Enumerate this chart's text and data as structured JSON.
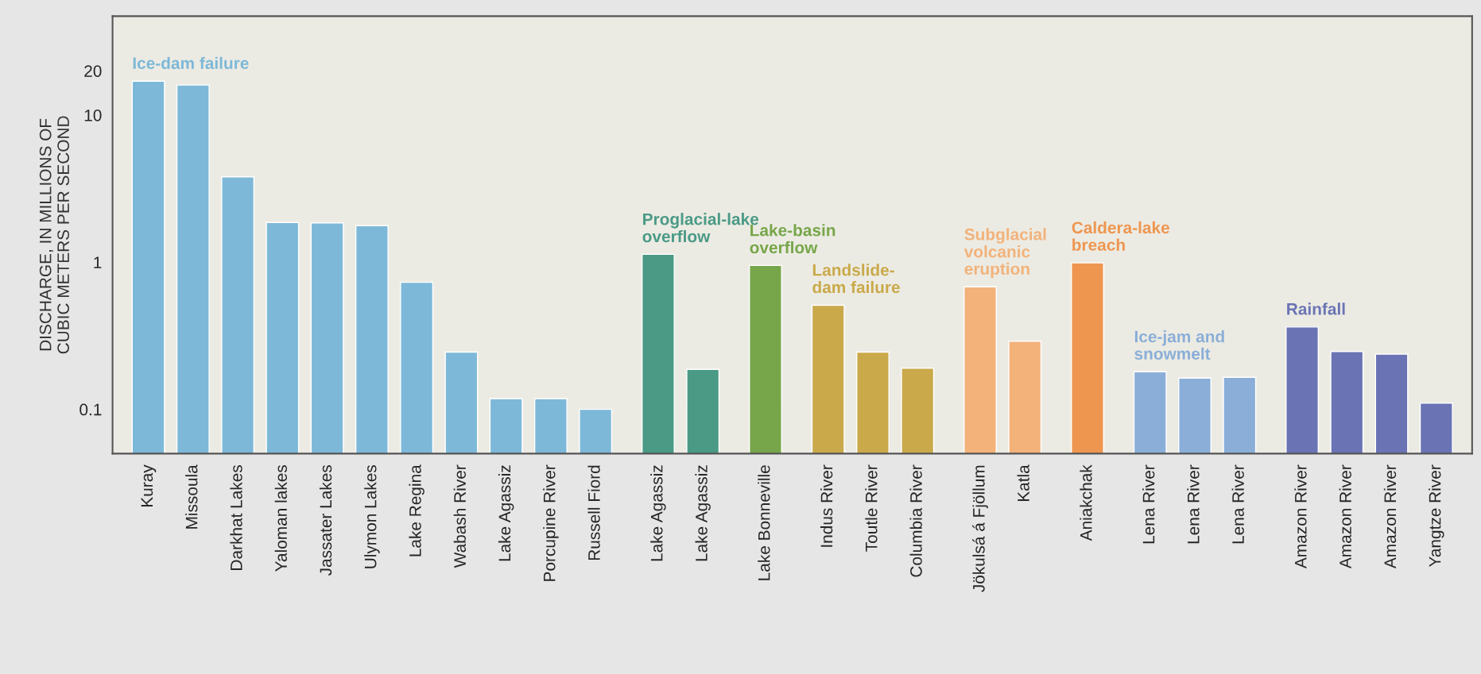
{
  "chart_data": {
    "type": "bar",
    "ylabel": "DISCHARGE, IN MILLIONS OF\nCUBIC METERS PER SECOND",
    "categories": [
      "Kuray",
      "Missoula",
      "Darkhat Lakes",
      "Yaloman lakes",
      "Jassater Lakes",
      "Ulymon Lakes",
      "Lake Regina",
      "Wabash River",
      "Lake Agassiz",
      "Porcupine River",
      "Russell Fiord",
      "Lake Agassiz",
      "Lake Agassiz",
      "Lake Bonneville",
      "Indus River",
      "Toutle River",
      "Columbia River",
      "Jökulsá á Fjöllum",
      "Katla",
      "Aniakchak",
      "Lena River",
      "Lena River",
      "Lena River",
      "Amazon River",
      "Amazon River",
      "Amazon River",
      "Yangtze River"
    ],
    "series": [
      {
        "name": "Ice-dam failure",
        "color": "#7db8d8",
        "values": [
          17,
          16,
          3.8,
          1.86,
          1.85,
          1.77,
          0.73,
          0.245,
          0.118,
          0.118,
          0.1,
          null,
          null,
          null,
          null,
          null,
          null,
          null,
          null,
          null,
          null,
          null,
          null,
          null,
          null,
          null,
          null
        ]
      },
      {
        "name": "Proglacial-lake\noverflow",
        "color": "#4a9a86",
        "values": [
          null,
          null,
          null,
          null,
          null,
          null,
          null,
          null,
          null,
          null,
          null,
          1.13,
          0.187,
          null,
          null,
          null,
          null,
          null,
          null,
          null,
          null,
          null,
          null,
          null,
          null,
          null,
          null
        ]
      },
      {
        "name": "Lake-basin\noverflow",
        "color": "#77a64a",
        "values": [
          null,
          null,
          null,
          null,
          null,
          null,
          null,
          null,
          null,
          null,
          null,
          null,
          null,
          0.95,
          null,
          null,
          null,
          null,
          null,
          null,
          null,
          null,
          null,
          null,
          null,
          null,
          null
        ]
      },
      {
        "name": "Landslide-\ndam failure",
        "color": "#c9a94a",
        "values": [
          null,
          null,
          null,
          null,
          null,
          null,
          null,
          null,
          null,
          null,
          null,
          null,
          null,
          null,
          0.51,
          0.245,
          0.19,
          null,
          null,
          null,
          null,
          null,
          null,
          null,
          null,
          null,
          null
        ]
      },
      {
        "name": "Subglacial\nvolcanic\neruption",
        "color": "#f2b27a",
        "values": [
          null,
          null,
          null,
          null,
          null,
          null,
          null,
          null,
          null,
          null,
          null,
          null,
          null,
          null,
          null,
          null,
          null,
          0.68,
          0.29,
          null,
          null,
          null,
          null,
          null,
          null,
          null,
          null
        ]
      },
      {
        "name": "Caldera-lake\nbreach",
        "color": "#ee9650",
        "values": [
          null,
          null,
          null,
          null,
          null,
          null,
          null,
          null,
          null,
          null,
          null,
          null,
          null,
          null,
          null,
          null,
          null,
          null,
          null,
          0.99,
          null,
          null,
          null,
          null,
          null,
          null,
          null
        ]
      },
      {
        "name": "Ice-jam and\nsnowmelt",
        "color": "#8aaed8",
        "values": [
          null,
          null,
          null,
          null,
          null,
          null,
          null,
          null,
          null,
          null,
          null,
          null,
          null,
          null,
          null,
          null,
          null,
          null,
          null,
          null,
          0.18,
          0.163,
          0.165,
          null,
          null,
          null,
          null
        ]
      },
      {
        "name": "Rainfall",
        "color": "#6a74b4",
        "values": [
          null,
          null,
          null,
          null,
          null,
          null,
          null,
          null,
          null,
          null,
          null,
          null,
          null,
          null,
          null,
          null,
          null,
          null,
          null,
          null,
          null,
          null,
          null,
          0.363,
          0.247,
          0.237,
          0.11
        ]
      }
    ],
    "log": true,
    "ylim": [
      0.05,
      47
    ],
    "yticks": [
      0.1,
      1,
      10,
      20
    ]
  }
}
